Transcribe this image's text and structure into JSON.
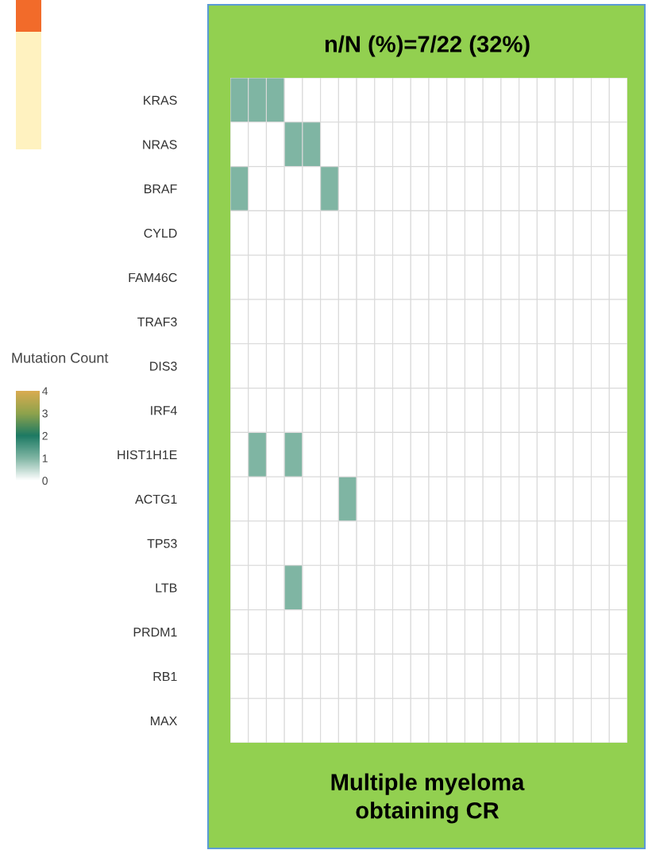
{
  "chart_data": {
    "type": "heatmap",
    "title": "n/N (%)=7/22 (32%)",
    "clabel": "Mutation Count",
    "categories": [
      null,
      null,
      null,
      null,
      null,
      null,
      null,
      null,
      null,
      null,
      null,
      null,
      null,
      null,
      null,
      null,
      null,
      null,
      null,
      null,
      null,
      null
    ],
    "y_categories": [
      "KRAS",
      "NRAS",
      "BRAF",
      "CYLD",
      "FAM46C",
      "TRAF3",
      "DIS3",
      "IRF4",
      "HIST1H1E",
      "ACTG1",
      "TP53",
      "LTB",
      "PRDM1",
      "RB1",
      "MAX"
    ],
    "cells": [
      [
        1,
        1,
        1,
        0,
        0,
        0,
        0,
        0,
        0,
        0,
        0,
        0,
        0,
        0,
        0,
        0,
        0,
        0,
        0,
        0,
        0,
        0
      ],
      [
        0,
        0,
        0,
        1,
        1,
        0,
        0,
        0,
        0,
        0,
        0,
        0,
        0,
        0,
        0,
        0,
        0,
        0,
        0,
        0,
        0,
        0
      ],
      [
        1,
        0,
        0,
        0,
        0,
        1,
        0,
        0,
        0,
        0,
        0,
        0,
        0,
        0,
        0,
        0,
        0,
        0,
        0,
        0,
        0,
        0
      ],
      [
        0,
        0,
        0,
        0,
        0,
        0,
        0,
        0,
        0,
        0,
        0,
        0,
        0,
        0,
        0,
        0,
        0,
        0,
        0,
        0,
        0,
        0
      ],
      [
        0,
        0,
        0,
        0,
        0,
        0,
        0,
        0,
        0,
        0,
        0,
        0,
        0,
        0,
        0,
        0,
        0,
        0,
        0,
        0,
        0,
        0
      ],
      [
        0,
        0,
        0,
        0,
        0,
        0,
        0,
        0,
        0,
        0,
        0,
        0,
        0,
        0,
        0,
        0,
        0,
        0,
        0,
        0,
        0,
        0
      ],
      [
        0,
        0,
        0,
        0,
        0,
        0,
        0,
        0,
        0,
        0,
        0,
        0,
        0,
        0,
        0,
        0,
        0,
        0,
        0,
        0,
        0,
        0
      ],
      [
        0,
        0,
        0,
        0,
        0,
        0,
        0,
        0,
        0,
        0,
        0,
        0,
        0,
        0,
        0,
        0,
        0,
        0,
        0,
        0,
        0,
        0
      ],
      [
        0,
        1,
        0,
        1,
        0,
        0,
        0,
        0,
        0,
        0,
        0,
        0,
        0,
        0,
        0,
        0,
        0,
        0,
        0,
        0,
        0,
        0
      ],
      [
        0,
        0,
        0,
        0,
        0,
        0,
        1,
        0,
        0,
        0,
        0,
        0,
        0,
        0,
        0,
        0,
        0,
        0,
        0,
        0,
        0,
        0
      ],
      [
        0,
        0,
        0,
        0,
        0,
        0,
        0,
        0,
        0,
        0,
        0,
        0,
        0,
        0,
        0,
        0,
        0,
        0,
        0,
        0,
        0,
        0
      ],
      [
        0,
        0,
        0,
        1,
        0,
        0,
        0,
        0,
        0,
        0,
        0,
        0,
        0,
        0,
        0,
        0,
        0,
        0,
        0,
        0,
        0,
        0
      ],
      [
        0,
        0,
        0,
        0,
        0,
        0,
        0,
        0,
        0,
        0,
        0,
        0,
        0,
        0,
        0,
        0,
        0,
        0,
        0,
        0,
        0,
        0
      ],
      [
        0,
        0,
        0,
        0,
        0,
        0,
        0,
        0,
        0,
        0,
        0,
        0,
        0,
        0,
        0,
        0,
        0,
        0,
        0,
        0,
        0,
        0
      ],
      [
        0,
        0,
        0,
        0,
        0,
        0,
        0,
        0,
        0,
        0,
        0,
        0,
        0,
        0,
        0,
        0,
        0,
        0,
        0,
        0,
        0,
        0
      ]
    ],
    "clim": [
      0,
      4
    ],
    "cticks": [
      0,
      1,
      2,
      3,
      4
    ],
    "annotations": [
      "Multiple myeloma\nobtaining CR"
    ]
  }
}
